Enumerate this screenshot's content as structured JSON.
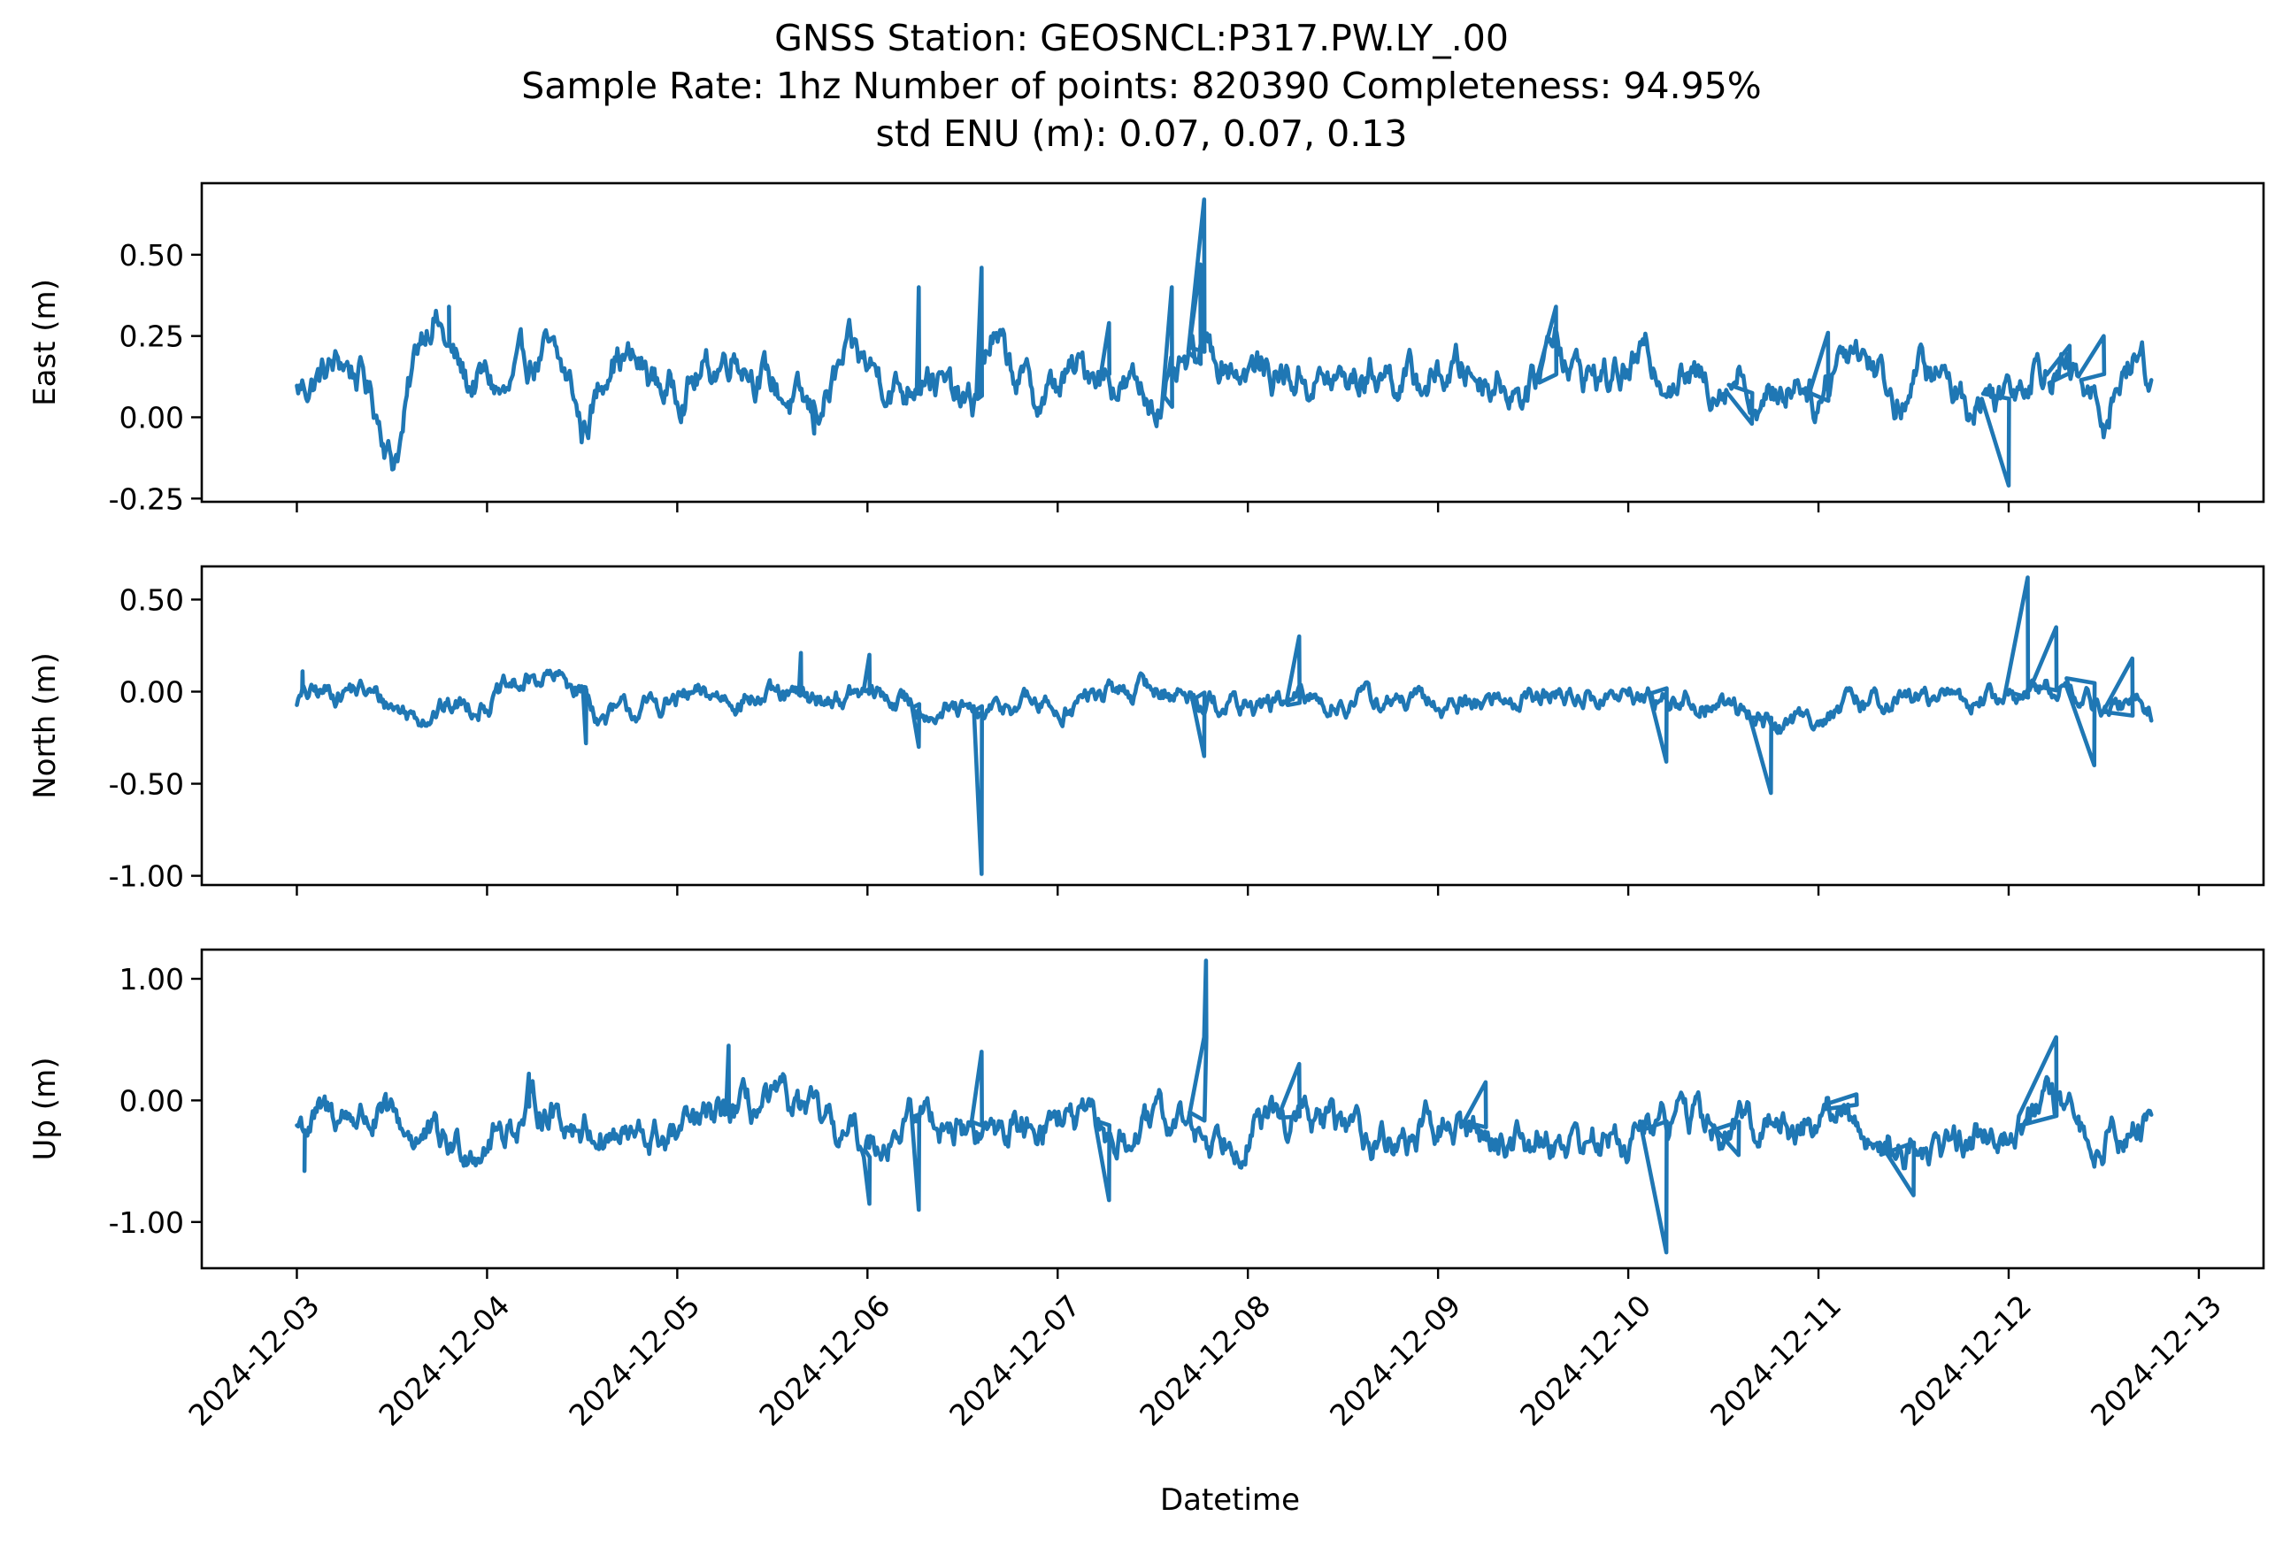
{
  "chart_data": {
    "type": "line",
    "title_lines": [
      "GNSS Station: GEOSNCL:P317.PW.LY_.00",
      "Sample Rate: 1hz   Number of points: 820390    Completeness:  94.95%",
      "std ENU (m):  0.07, 0.07, 0.13"
    ],
    "xlabel": "Datetime",
    "x_range": [
      "2024-12-03",
      "2024-12-12T18:00"
    ],
    "x_tick_labels": [
      "2024-12-03",
      "2024-12-04",
      "2024-12-05",
      "2024-12-06",
      "2024-12-07",
      "2024-12-08",
      "2024-12-09",
      "2024-12-10",
      "2024-12-11",
      "2024-12-12",
      "2024-12-13"
    ],
    "x_tick_days": [
      0,
      1,
      2,
      3,
      4,
      5,
      6,
      7,
      8,
      9,
      10
    ],
    "line_color": "#1f77b4",
    "grid": false,
    "legend": "none",
    "series": [
      {
        "ylabel": "East (m)",
        "ylim": [
          -0.26,
          0.72
        ],
        "yticks": [
          -0.25,
          0.0,
          0.25,
          0.5
        ],
        "ytick_labels": [
          "-0.25",
          "0.00",
          "0.25",
          "0.50"
        ],
        "base": 0.12,
        "noise": 0.04,
        "trend": [
          [
            0,
            0.08
          ],
          [
            0.1,
            0.12
          ],
          [
            0.25,
            0.17
          ],
          [
            0.35,
            0.12
          ],
          [
            0.45,
            -0.02
          ],
          [
            0.5,
            -0.13
          ],
          [
            0.55,
            -0.05
          ],
          [
            0.65,
            0.25
          ],
          [
            0.72,
            0.34
          ],
          [
            0.8,
            0.2
          ],
          [
            0.9,
            0.1
          ],
          [
            1.0,
            0.12
          ],
          [
            1.1,
            0.05
          ],
          [
            1.2,
            0.15
          ],
          [
            1.3,
            0.2
          ],
          [
            1.45,
            0.08
          ],
          [
            1.5,
            -0.05
          ],
          [
            1.6,
            0.1
          ],
          [
            1.65,
            0.22
          ],
          [
            1.8,
            0.15
          ],
          [
            1.95,
            0.08
          ],
          [
            2.2,
            0.15
          ],
          [
            2.3,
            0.22
          ],
          [
            2.5,
            0.1
          ],
          [
            2.7,
            0.0
          ],
          [
            2.8,
            0.08
          ],
          [
            2.9,
            0.18
          ],
          [
            3.05,
            0.14
          ],
          [
            3.2,
            0.08
          ],
          [
            3.3,
            0.18
          ],
          [
            3.45,
            0.05
          ],
          [
            3.55,
            0.02
          ],
          [
            3.65,
            0.25
          ],
          [
            3.75,
            0.15
          ],
          [
            3.9,
            0.05
          ],
          [
            4.05,
            0.12
          ],
          [
            4.2,
            0.16
          ],
          [
            4.35,
            0.1
          ],
          [
            4.5,
            0.06
          ],
          [
            4.6,
            0.08
          ],
          [
            4.7,
            0.15
          ],
          [
            4.8,
            0.2
          ],
          [
            5.0,
            0.15
          ],
          [
            5.3,
            0.12
          ],
          [
            5.5,
            0.1
          ],
          [
            5.7,
            0.15
          ],
          [
            5.9,
            0.1
          ],
          [
            6.1,
            0.15
          ],
          [
            6.3,
            0.12
          ],
          [
            6.5,
            0.08
          ],
          [
            6.62,
            0.3
          ],
          [
            6.7,
            0.15
          ],
          [
            6.9,
            0.12
          ],
          [
            7.1,
            0.18
          ],
          [
            7.3,
            0.12
          ],
          [
            7.4,
            0.1
          ],
          [
            7.6,
            0.15
          ],
          [
            7.7,
            0.02
          ],
          [
            7.9,
            0.14
          ],
          [
            8.0,
            0.05
          ],
          [
            8.1,
            0.2
          ],
          [
            8.2,
            0.24
          ],
          [
            8.35,
            0.12
          ],
          [
            8.4,
            0.04
          ],
          [
            8.55,
            0.15
          ],
          [
            8.7,
            0.1
          ],
          [
            8.8,
            0.05
          ],
          [
            9.0,
            0.1
          ],
          [
            9.15,
            0.18
          ],
          [
            9.3,
            0.15
          ],
          [
            9.4,
            0.08
          ],
          [
            9.5,
            0.0
          ],
          [
            9.6,
            0.15
          ],
          [
            9.7,
            0.18
          ],
          [
            9.75,
            0.12
          ]
        ],
        "spikes": [
          [
            0.8,
            0.34
          ],
          [
            3.27,
            0.4
          ],
          [
            3.6,
            0.46
          ],
          [
            4.27,
            0.29
          ],
          [
            4.6,
            0.4
          ],
          [
            4.75,
            0.47
          ],
          [
            4.77,
            0.67
          ],
          [
            6.62,
            0.34
          ],
          [
            9.32,
            0.22
          ],
          [
            9.5,
            0.25
          ],
          [
            8.05,
            0.26
          ],
          [
            2.72,
            -0.05
          ],
          [
            9.0,
            -0.21
          ],
          [
            7.65,
            -0.02
          ]
        ]
      },
      {
        "ylabel": "North (m)",
        "ylim": [
          -1.05,
          0.68
        ],
        "yticks": [
          -1.0,
          -0.5,
          0.0,
          0.5
        ],
        "ytick_labels": [
          "-1.00",
          "-0.50",
          "0.00",
          "0.50"
        ],
        "base": -0.04,
        "noise": 0.04,
        "trend": [
          [
            0,
            -0.04
          ],
          [
            0.3,
            0.02
          ],
          [
            0.6,
            -0.12
          ],
          [
            1.0,
            -0.05
          ],
          [
            1.3,
            0.08
          ],
          [
            1.5,
            0.02
          ],
          [
            1.6,
            -0.15
          ],
          [
            2.0,
            -0.05
          ],
          [
            2.3,
            -0.02
          ],
          [
            2.6,
            -0.05
          ],
          [
            3.0,
            -0.02
          ],
          [
            3.3,
            -0.08
          ],
          [
            3.6,
            -0.15
          ],
          [
            3.8,
            -0.05
          ],
          [
            4.0,
            -0.1
          ],
          [
            4.2,
            -0.02
          ],
          [
            4.5,
            0.02
          ],
          [
            4.8,
            -0.05
          ],
          [
            5.0,
            -0.08
          ],
          [
            5.3,
            -0.05
          ],
          [
            5.7,
            -0.05
          ],
          [
            6.0,
            -0.08
          ],
          [
            6.5,
            -0.02
          ],
          [
            7.0,
            -0.03
          ],
          [
            7.3,
            -0.05
          ],
          [
            7.6,
            -0.1
          ],
          [
            7.8,
            -0.18
          ],
          [
            8.0,
            -0.12
          ],
          [
            8.4,
            -0.03
          ],
          [
            8.8,
            -0.05
          ],
          [
            9.1,
            -0.02
          ],
          [
            9.3,
            0.05
          ],
          [
            9.5,
            -0.12
          ],
          [
            9.7,
            -0.05
          ],
          [
            9.75,
            -0.1
          ]
        ],
        "spikes": [
          [
            0.03,
            0.11
          ],
          [
            2.65,
            0.21
          ],
          [
            3.01,
            0.2
          ],
          [
            3.6,
            -0.99
          ],
          [
            3.27,
            -0.3
          ],
          [
            5.27,
            0.3
          ],
          [
            4.77,
            -0.35
          ],
          [
            7.2,
            -0.38
          ],
          [
            7.75,
            -0.55
          ],
          [
            9.1,
            0.62
          ],
          [
            9.25,
            0.35
          ],
          [
            9.45,
            -0.4
          ],
          [
            9.65,
            0.18
          ],
          [
            1.52,
            -0.28
          ]
        ]
      },
      {
        "ylabel": "Up (m)",
        "ylim": [
          -1.38,
          1.24
        ],
        "yticks": [
          -1.0,
          0.0,
          1.0
        ],
        "ytick_labels": [
          "-1.00",
          "0.00",
          "1.00"
        ],
        "base": -0.22,
        "noise": 0.1,
        "trend": [
          [
            0,
            -0.2
          ],
          [
            0.3,
            -0.1
          ],
          [
            0.5,
            -0.2
          ],
          [
            0.8,
            -0.4
          ],
          [
            1.0,
            -0.3
          ],
          [
            1.3,
            -0.05
          ],
          [
            1.5,
            -0.2
          ],
          [
            1.8,
            -0.35
          ],
          [
            2.0,
            -0.3
          ],
          [
            2.3,
            -0.1
          ],
          [
            2.6,
            -0.05
          ],
          [
            2.8,
            -0.25
          ],
          [
            3.0,
            -0.35
          ],
          [
            3.3,
            -0.1
          ],
          [
            3.6,
            -0.3
          ],
          [
            3.8,
            -0.2
          ],
          [
            4.0,
            -0.1
          ],
          [
            4.3,
            -0.35
          ],
          [
            4.6,
            -0.15
          ],
          [
            4.8,
            -0.3
          ],
          [
            5.0,
            -0.2
          ],
          [
            5.3,
            -0.15
          ],
          [
            5.6,
            -0.25
          ],
          [
            5.8,
            -0.35
          ],
          [
            6.0,
            -0.2
          ],
          [
            6.3,
            -0.3
          ],
          [
            6.6,
            -0.3
          ],
          [
            6.9,
            -0.35
          ],
          [
            7.1,
            -0.25
          ],
          [
            7.3,
            -0.1
          ],
          [
            7.5,
            -0.3
          ],
          [
            7.7,
            -0.15
          ],
          [
            7.9,
            -0.2
          ],
          [
            8.1,
            -0.1
          ],
          [
            8.3,
            -0.35
          ],
          [
            8.6,
            -0.4
          ],
          [
            8.8,
            -0.3
          ],
          [
            9.0,
            -0.2
          ],
          [
            9.2,
            -0.05
          ],
          [
            9.4,
            -0.3
          ],
          [
            9.6,
            -0.25
          ],
          [
            9.75,
            -0.2
          ]
        ],
        "spikes": [
          [
            0.04,
            -0.58
          ],
          [
            2.27,
            0.45
          ],
          [
            3.01,
            -0.85
          ],
          [
            3.27,
            -0.9
          ],
          [
            3.6,
            0.4
          ],
          [
            4.27,
            -0.82
          ],
          [
            4.77,
            0.52
          ],
          [
            4.78,
            1.15
          ],
          [
            5.27,
            0.3
          ],
          [
            6.25,
            0.15
          ],
          [
            7.2,
            -1.25
          ],
          [
            7.58,
            -0.45
          ],
          [
            8.2,
            0.05
          ],
          [
            8.5,
            -0.78
          ],
          [
            9.25,
            0.52
          ],
          [
            1.22,
            0.22
          ]
        ]
      }
    ]
  }
}
